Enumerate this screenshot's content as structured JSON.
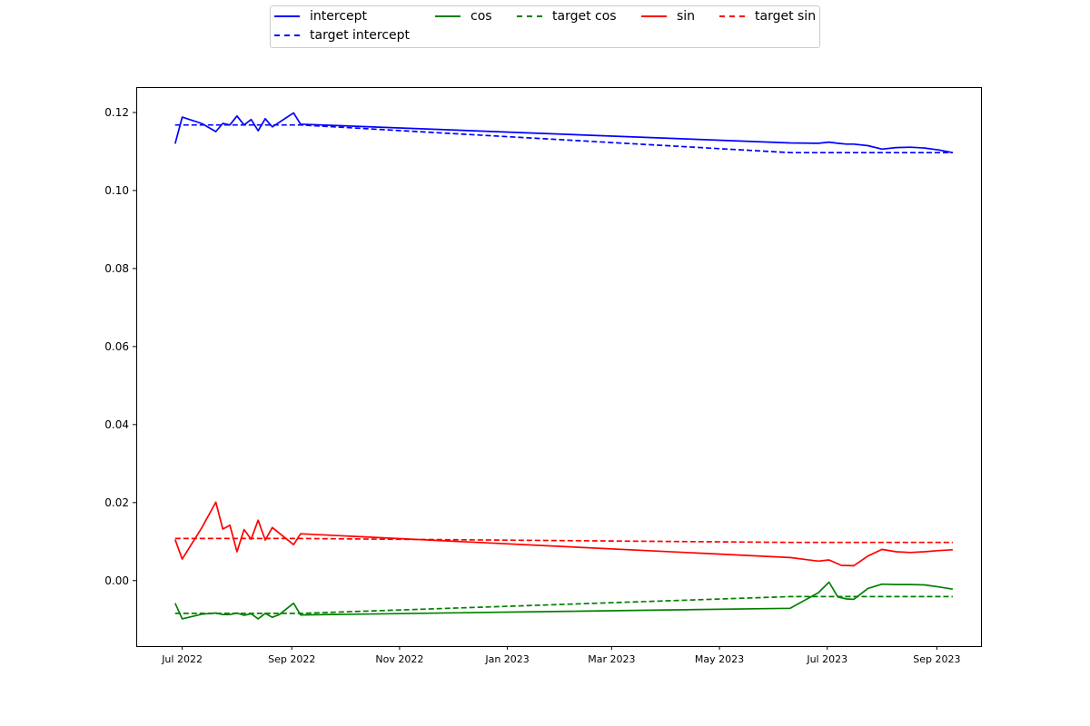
{
  "chart_data": {
    "type": "line",
    "x_type": "date",
    "xlim": [
      "2022-06-05",
      "2023-09-26"
    ],
    "ylim": [
      -0.0168,
      0.1265
    ],
    "grid": false,
    "legend_placement": "top-center",
    "yticks": [
      0.0,
      0.02,
      0.04,
      0.06,
      0.08,
      0.1,
      0.12
    ],
    "ytick_labels": [
      "0.00",
      "0.02",
      "0.04",
      "0.06",
      "0.08",
      "0.10",
      "0.12"
    ],
    "xticks": [
      "2022-07-01",
      "2022-09-01",
      "2022-11-01",
      "2023-01-01",
      "2023-03-01",
      "2023-05-01",
      "2023-07-01",
      "2023-09-01"
    ],
    "xtick_labels": [
      "Jul 2022",
      "Sep 2022",
      "Nov 2022",
      "Jan 2023",
      "Mar 2023",
      "May 2023",
      "Jul 2023",
      "Sep 2023"
    ],
    "series": [
      {
        "name": "intercept",
        "color": "#0000ff",
        "dash": "solid",
        "points": [
          [
            "2022-06-27",
            0.112
          ],
          [
            "2022-07-01",
            0.1188
          ],
          [
            "2022-07-12",
            0.1172
          ],
          [
            "2022-07-20",
            0.1151
          ],
          [
            "2022-07-24",
            0.1172
          ],
          [
            "2022-07-28",
            0.1168
          ],
          [
            "2022-08-01",
            0.1191
          ],
          [
            "2022-08-05",
            0.1168
          ],
          [
            "2022-08-09",
            0.1182
          ],
          [
            "2022-08-13",
            0.1153
          ],
          [
            "2022-08-17",
            0.1184
          ],
          [
            "2022-08-21",
            0.1163
          ],
          [
            "2022-09-02",
            0.1199
          ],
          [
            "2022-09-06",
            0.117
          ],
          [
            "2023-06-10",
            0.1122
          ],
          [
            "2023-06-26",
            0.1121
          ],
          [
            "2023-07-02",
            0.1124
          ],
          [
            "2023-07-07",
            0.1121
          ],
          [
            "2023-07-12",
            0.1119
          ],
          [
            "2023-07-16",
            0.1119
          ],
          [
            "2023-07-24",
            0.1115
          ],
          [
            "2023-08-01",
            0.1106
          ],
          [
            "2023-08-09",
            0.111
          ],
          [
            "2023-08-17",
            0.1111
          ],
          [
            "2023-08-25",
            0.1109
          ],
          [
            "2023-09-02",
            0.1104
          ],
          [
            "2023-09-10",
            0.1097
          ]
        ]
      },
      {
        "name": "target intercept",
        "color": "#0000ff",
        "dash": "dashed",
        "points": [
          [
            "2022-06-27",
            0.1168
          ],
          [
            "2022-09-06",
            0.1168
          ],
          [
            "2023-06-10",
            0.1097
          ],
          [
            "2023-09-10",
            0.1097
          ]
        ]
      },
      {
        "name": "cos",
        "color": "#008000",
        "dash": "solid",
        "points": [
          [
            "2022-06-27",
            -0.0058
          ],
          [
            "2022-07-01",
            -0.0098
          ],
          [
            "2022-07-12",
            -0.0086
          ],
          [
            "2022-07-20",
            -0.0083
          ],
          [
            "2022-07-24",
            -0.0087
          ],
          [
            "2022-07-28",
            -0.0087
          ],
          [
            "2022-08-01",
            -0.0083
          ],
          [
            "2022-08-05",
            -0.0089
          ],
          [
            "2022-08-09",
            -0.0085
          ],
          [
            "2022-08-13",
            -0.0098
          ],
          [
            "2022-08-17",
            -0.0084
          ],
          [
            "2022-08-21",
            -0.0094
          ],
          [
            "2022-08-25",
            -0.0087
          ],
          [
            "2022-09-02",
            -0.0058
          ],
          [
            "2022-09-06",
            -0.0088
          ],
          [
            "2023-06-10",
            -0.0071
          ],
          [
            "2023-06-26",
            -0.0031
          ],
          [
            "2023-07-02",
            -0.0004
          ],
          [
            "2023-07-07",
            -0.0042
          ],
          [
            "2023-07-12",
            -0.0047
          ],
          [
            "2023-07-16",
            -0.0048
          ],
          [
            "2023-07-24",
            -0.002
          ],
          [
            "2023-08-01",
            -0.0009
          ],
          [
            "2023-08-09",
            -0.001
          ],
          [
            "2023-08-17",
            -0.001
          ],
          [
            "2023-08-25",
            -0.0011
          ],
          [
            "2023-09-02",
            -0.0016
          ],
          [
            "2023-09-10",
            -0.0022
          ]
        ]
      },
      {
        "name": "target cos",
        "color": "#008000",
        "dash": "dashed",
        "points": [
          [
            "2022-06-27",
            -0.0084
          ],
          [
            "2022-09-06",
            -0.0084
          ],
          [
            "2023-06-10",
            -0.0041
          ],
          [
            "2023-09-10",
            -0.0041
          ]
        ]
      },
      {
        "name": "sin",
        "color": "#ff0000",
        "dash": "solid",
        "points": [
          [
            "2022-06-27",
            0.0105
          ],
          [
            "2022-07-01",
            0.0055
          ],
          [
            "2022-07-12",
            0.0135
          ],
          [
            "2022-07-20",
            0.0201
          ],
          [
            "2022-07-24",
            0.0132
          ],
          [
            "2022-07-28",
            0.0142
          ],
          [
            "2022-08-01",
            0.0074
          ],
          [
            "2022-08-05",
            0.0131
          ],
          [
            "2022-08-09",
            0.0106
          ],
          [
            "2022-08-13",
            0.0155
          ],
          [
            "2022-08-17",
            0.0104
          ],
          [
            "2022-08-21",
            0.0136
          ],
          [
            "2022-09-02",
            0.0092
          ],
          [
            "2022-09-06",
            0.012
          ],
          [
            "2023-06-10",
            0.0059
          ],
          [
            "2023-06-26",
            0.005
          ],
          [
            "2023-07-02",
            0.0053
          ],
          [
            "2023-07-09",
            0.0039
          ],
          [
            "2023-07-16",
            0.0038
          ],
          [
            "2023-07-24",
            0.0063
          ],
          [
            "2023-08-01",
            0.008
          ],
          [
            "2023-08-09",
            0.0074
          ],
          [
            "2023-08-17",
            0.0072
          ],
          [
            "2023-08-25",
            0.0074
          ],
          [
            "2023-09-02",
            0.0077
          ],
          [
            "2023-09-10",
            0.0079
          ]
        ]
      },
      {
        "name": "target sin",
        "color": "#ff0000",
        "dash": "dashed",
        "points": [
          [
            "2022-06-27",
            0.0108
          ],
          [
            "2022-09-06",
            0.0108
          ],
          [
            "2023-06-10",
            0.0098
          ],
          [
            "2023-09-10",
            0.0098
          ]
        ]
      }
    ]
  }
}
